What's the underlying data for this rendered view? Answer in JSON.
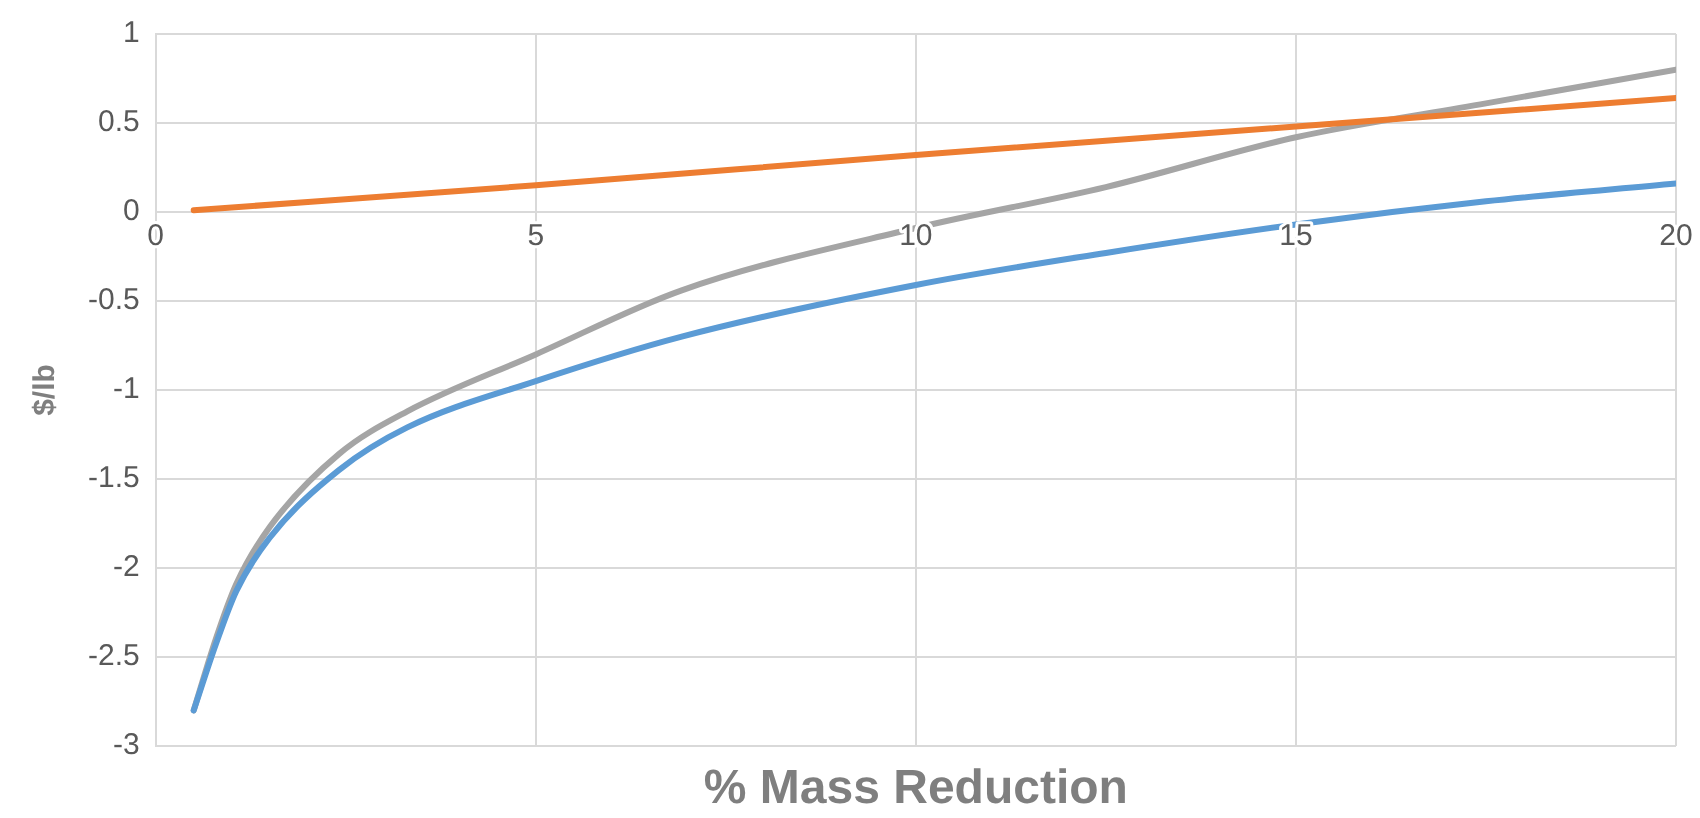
{
  "chart_data": {
    "type": "line",
    "xlabel": "% Mass Reduction",
    "ylabel": "$/lb",
    "xlim": [
      0,
      20
    ],
    "xticks": [
      0,
      5,
      10,
      15,
      20
    ],
    "ylim": [
      -3,
      1
    ],
    "yticks": [
      -3,
      -2.5,
      -2,
      -1.5,
      -1,
      -0.5,
      0,
      0.5,
      1
    ],
    "grid": true,
    "legend": false,
    "marker": "none",
    "line_style": "solid",
    "series": [
      {
        "color": "#5b9bd5",
        "x": [
          0.5,
          0.79,
          1.06,
          1.5,
          2.41,
          3.31,
          5,
          6.92,
          10,
          12.5,
          15,
          17.5,
          20
        ],
        "values": [
          -2.8,
          -2.43,
          -2.13,
          -1.83,
          -1.45,
          -1.21,
          -0.95,
          -0.7,
          -0.41,
          -0.23,
          -0.07,
          0.06,
          0.16
        ]
      },
      {
        "color": "#ed7d31",
        "x": [
          0.5,
          5,
          10,
          15,
          20
        ],
        "values": [
          0.01,
          0.15,
          0.32,
          0.48,
          0.64
        ]
      },
      {
        "color": "#a5a5a5",
        "x": [
          0.5,
          0.79,
          1.06,
          1.5,
          2.41,
          3.31,
          5,
          6.92,
          10,
          12.5,
          15,
          17.5,
          20
        ],
        "values": [
          -2.8,
          -2.4,
          -2.09,
          -1.77,
          -1.36,
          -1.12,
          -0.8,
          -0.44,
          -0.09,
          0.14,
          0.42,
          0.61,
          0.8
        ]
      }
    ]
  }
}
